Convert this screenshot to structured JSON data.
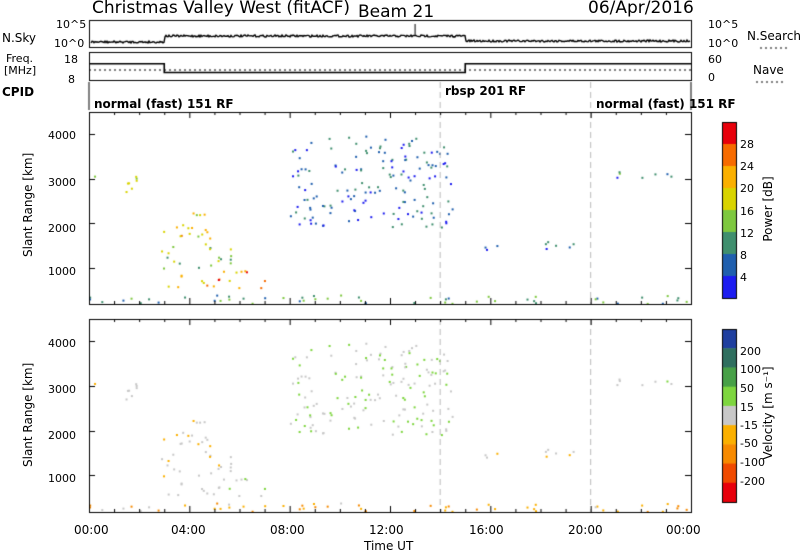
{
  "header": {
    "station": "Christmas Valley West (fitACF)",
    "beam": "Beam 21",
    "date": "06/Apr/2016"
  },
  "top_panels": {
    "nsky_label": "N.Sky",
    "nsky_ticks": [
      "10^5",
      "10^0"
    ],
    "nsearch_label": "N.Search",
    "nsearch_ticks": [
      "10^5",
      "10^0"
    ],
    "freq_label": "Freq.",
    "freq_unit": "[MHz]",
    "freq_ticks": [
      "18",
      "8"
    ],
    "nave_label": "Nave",
    "nave_ticks": [
      "60",
      "0"
    ],
    "cpid_label": "CPID"
  },
  "cpid_segments": [
    {
      "label": "normal (fast) 151 RF",
      "start_hour": 0
    },
    {
      "label": "rbsp 201 RF",
      "start_hour": 14
    },
    {
      "label": "normal (fast) 151 RF",
      "start_hour": 20
    }
  ],
  "axes": {
    "ylabel": "Slant Range [km]",
    "yticks": [
      "4000",
      "3000",
      "2000",
      "1000"
    ],
    "xlabel": "Time UT",
    "xticks": [
      "00:00",
      "04:00",
      "08:00",
      "12:00",
      "16:00",
      "20:00",
      "00:00"
    ]
  },
  "power_colorbar": {
    "label": "Power [dB]",
    "ticks": [
      "28",
      "24",
      "20",
      "16",
      "12",
      "8",
      "4"
    ],
    "colors": [
      "#e8000b",
      "#f76b00",
      "#fbb000",
      "#d9d400",
      "#7ec83f",
      "#3f8f6e",
      "#1f5fae",
      "#1c1cf0"
    ]
  },
  "velocity_colorbar": {
    "label": "Velocity [m s⁻¹]",
    "ticks": [
      "200",
      "100",
      "50",
      "15",
      "-15",
      "-50",
      "-100",
      "-200"
    ],
    "colors": [
      "#1f3f9f",
      "#2f6f5f",
      "#47a047",
      "#7ed63f",
      "#c8c8c8",
      "#fbb000",
      "#f78a00",
      "#f04a00",
      "#e8000b"
    ]
  },
  "chart_data": {
    "type": "heatmap",
    "title": "Christmas Valley West (fitACF)",
    "subtitle": "Beam 21",
    "xlabel": "Time UT",
    "ylabel": "Slant Range [km]",
    "xlim": [
      0,
      24
    ],
    "ylim": [
      180,
      4500
    ],
    "grid": false,
    "frequency_mhz": [
      {
        "from": 0,
        "to": 3,
        "value": 14.5
      },
      {
        "from": 3,
        "to": 15,
        "value": 10.5
      },
      {
        "from": 15,
        "to": 24,
        "value": 14.5
      }
    ],
    "scatter_regions": [
      {
        "t0": 0.2,
        "t1": 2.0,
        "r0": 2700,
        "r1": 3100,
        "power": 18,
        "velocity": -5
      },
      {
        "t0": 2.8,
        "t1": 4.8,
        "r0": 1500,
        "r1": 2300,
        "power": 20,
        "velocity": -5
      },
      {
        "t0": 2.7,
        "t1": 6.0,
        "r0": 1000,
        "r1": 1500,
        "power": 14,
        "velocity": -5
      },
      {
        "t0": 2.8,
        "t1": 7.0,
        "r0": 550,
        "r1": 950,
        "power": 24,
        "velocity": 5
      },
      {
        "t0": 8.0,
        "t1": 14.5,
        "r0": 1900,
        "r1": 4000,
        "power": 6,
        "velocity": 10
      },
      {
        "t0": 15.5,
        "t1": 19.5,
        "r0": 1400,
        "r1": 1600,
        "power": 8,
        "velocity": -5
      },
      {
        "t0": 21.0,
        "t1": 24.0,
        "r0": 3000,
        "r1": 3200,
        "power": 8,
        "velocity": 5
      },
      {
        "t0": 0.0,
        "t1": 24.0,
        "r0": 200,
        "r1": 400,
        "power": 10,
        "velocity": -30
      }
    ]
  }
}
